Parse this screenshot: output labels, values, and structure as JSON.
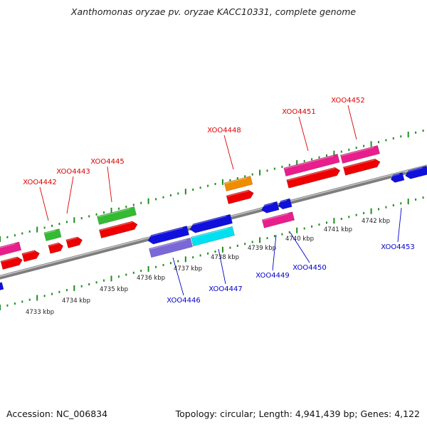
{
  "title": "Xanthomonas oryzae pv. oryzae KACC10331, complete genome",
  "footer": {
    "accession": "Accession: NC_006834",
    "topology": "Topology: circular; Length: 4,941,439 bp; Genes: 4,122"
  },
  "colors": {
    "backbone": "#8c8c8c",
    "tick": "#1e8c1e",
    "forward_label": "#dd0000",
    "reverse_label": "#0000cc"
  },
  "scale_labels": [
    "4733 kbp",
    "4734 kbp",
    "4735 kbp",
    "4736 kbp",
    "4737 kbp",
    "4738 kbp",
    "4739 kbp",
    "4740 kbp",
    "4741 kbp",
    "4742 kbp"
  ],
  "forward_genes": [
    "XOO4442",
    "XOO4443",
    "XOO4445",
    "XOO4448",
    "XOO4451",
    "XOO4452"
  ],
  "reverse_genes": [
    "XOO4446",
    "XOO4447",
    "XOO4449",
    "XOO4450",
    "XOO4453"
  ]
}
